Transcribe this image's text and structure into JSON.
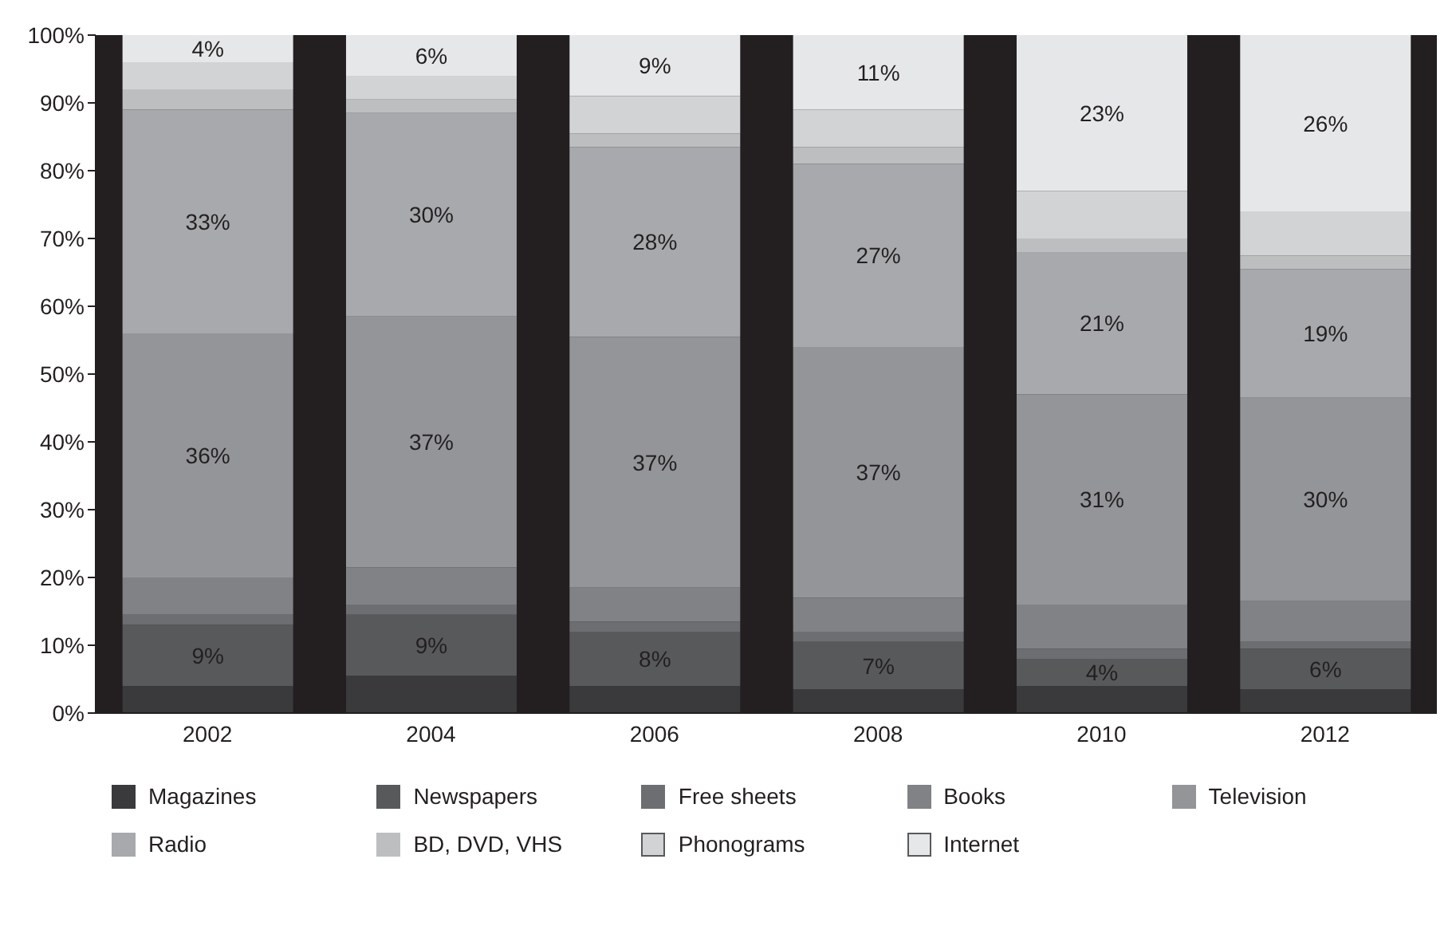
{
  "chart_data": {
    "type": "bar",
    "stacked": true,
    "categories": [
      "2002",
      "2004",
      "2006",
      "2008",
      "2010",
      "2012"
    ],
    "series": [
      {
        "name": "Magazines",
        "color": "#3a3a3c",
        "values": [
          4,
          5.5,
          4,
          3.5,
          4,
          3.5
        ]
      },
      {
        "name": "Newspapers",
        "color": "#58595b",
        "values": [
          9,
          9,
          8,
          7,
          4,
          6
        ],
        "value_labels": [
          "9%",
          "9%",
          "8%",
          "7%",
          "4%",
          "6%"
        ]
      },
      {
        "name": "Free sheets",
        "color": "#6d6e71",
        "values": [
          1.5,
          1.5,
          1.5,
          1.5,
          1.5,
          1
        ]
      },
      {
        "name": "Books",
        "color": "#808285",
        "values": [
          5.5,
          5.5,
          5,
          5,
          6.5,
          6
        ]
      },
      {
        "name": "Television",
        "color": "#939598",
        "values": [
          36,
          37,
          37,
          37,
          31,
          30
        ],
        "value_labels": [
          "36%",
          "37%",
          "37%",
          "37%",
          "31%",
          "30%"
        ]
      },
      {
        "name": "Radio",
        "color": "#a7a9ac",
        "values": [
          33,
          30,
          28,
          27,
          21,
          19
        ],
        "value_labels": [
          "33%",
          "30%",
          "28%",
          "27%",
          "21%",
          "19%"
        ]
      },
      {
        "name": "BD, DVD, VHS",
        "color": "#bcbec0",
        "values": [
          3,
          2,
          2,
          2.5,
          2,
          2
        ]
      },
      {
        "name": "Phonograms",
        "color": "#d1d3d4",
        "values": [
          4,
          3.5,
          5.5,
          5.5,
          7,
          6.5
        ]
      },
      {
        "name": "Internet",
        "color": "#e6e7e8",
        "values": [
          4,
          6,
          9,
          11,
          23,
          26
        ],
        "value_labels": [
          "4%",
          "6%",
          "9%",
          "11%",
          "23%",
          "26%"
        ]
      }
    ],
    "ylim": [
      0,
      100
    ],
    "yticks": [
      {
        "value": 0,
        "label": "0%"
      },
      {
        "value": 10,
        "label": "10%"
      },
      {
        "value": 20,
        "label": "20%"
      },
      {
        "value": 30,
        "label": "30%"
      },
      {
        "value": 40,
        "label": "40%"
      },
      {
        "value": 50,
        "label": "50%"
      },
      {
        "value": 60,
        "label": "60%"
      },
      {
        "value": 70,
        "label": "70%"
      },
      {
        "value": 80,
        "label": "80%"
      },
      {
        "value": 90,
        "label": "90%"
      },
      {
        "value": 100,
        "label": "100%"
      }
    ],
    "legend": "bottom"
  }
}
